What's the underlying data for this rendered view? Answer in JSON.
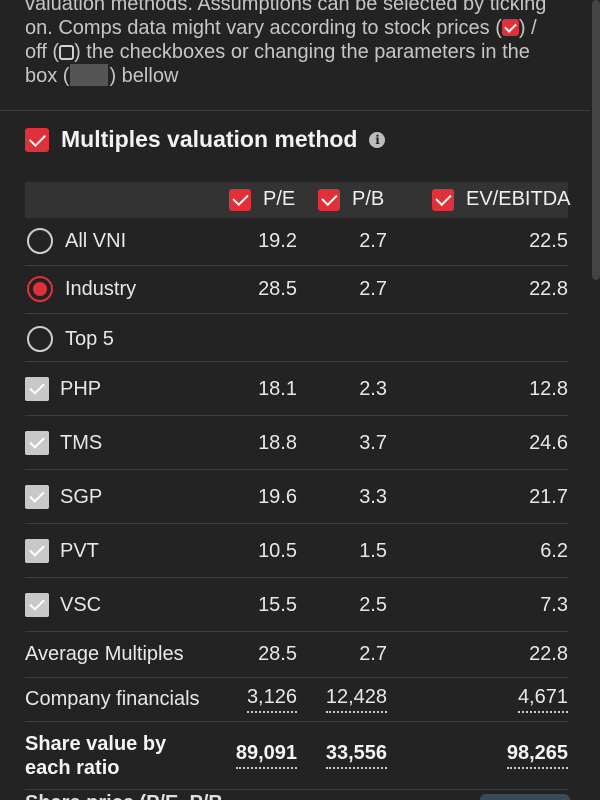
{
  "intro": {
    "line1": "valuation methods. Assumptions can be selected by ticking",
    "line2a": "on. Comps data might vary according to stock prices (",
    "line2b": ") /",
    "line3a": "off (",
    "line3b": ") the checkboxes or changing the parameters in the",
    "line4a": "box (",
    "line4b": ") bellow"
  },
  "section": {
    "title": "Multiples valuation method",
    "info_icon": "i"
  },
  "columns": [
    "P/E",
    "P/B",
    "EV/EBITDA"
  ],
  "benchmarks": [
    {
      "label": "All VNI",
      "selected": false,
      "pe": "19.2",
      "pb": "2.7",
      "ev": "22.5"
    },
    {
      "label": "Industry",
      "selected": true,
      "pe": "28.5",
      "pb": "2.7",
      "ev": "22.8"
    },
    {
      "label": "Top 5",
      "selected": false,
      "pe": "",
      "pb": "",
      "ev": ""
    }
  ],
  "companies": [
    {
      "ticker": "PHP",
      "pe": "18.1",
      "pb": "2.3",
      "ev": "12.8"
    },
    {
      "ticker": "TMS",
      "pe": "18.8",
      "pb": "3.7",
      "ev": "24.6"
    },
    {
      "ticker": "SGP",
      "pe": "19.6",
      "pb": "3.3",
      "ev": "21.7"
    },
    {
      "ticker": "PVT",
      "pe": "10.5",
      "pb": "1.5",
      "ev": "6.2"
    },
    {
      "ticker": "VSC",
      "pe": "15.5",
      "pb": "2.5",
      "ev": "7.3"
    }
  ],
  "average": {
    "label": "Average Multiples",
    "pe": "28.5",
    "pb": "2.7",
    "ev": "22.8"
  },
  "financials": {
    "label": "Company financials",
    "pe": "3,126",
    "pb": "12,428",
    "ev": "4,671"
  },
  "share_value": {
    "label_line1": "Share value by",
    "label_line2": "each ratio",
    "pe": "89,091",
    "pb": "33,556",
    "ev": "98,265"
  },
  "bottom_text": "Share price (P/E, P/B..."
}
